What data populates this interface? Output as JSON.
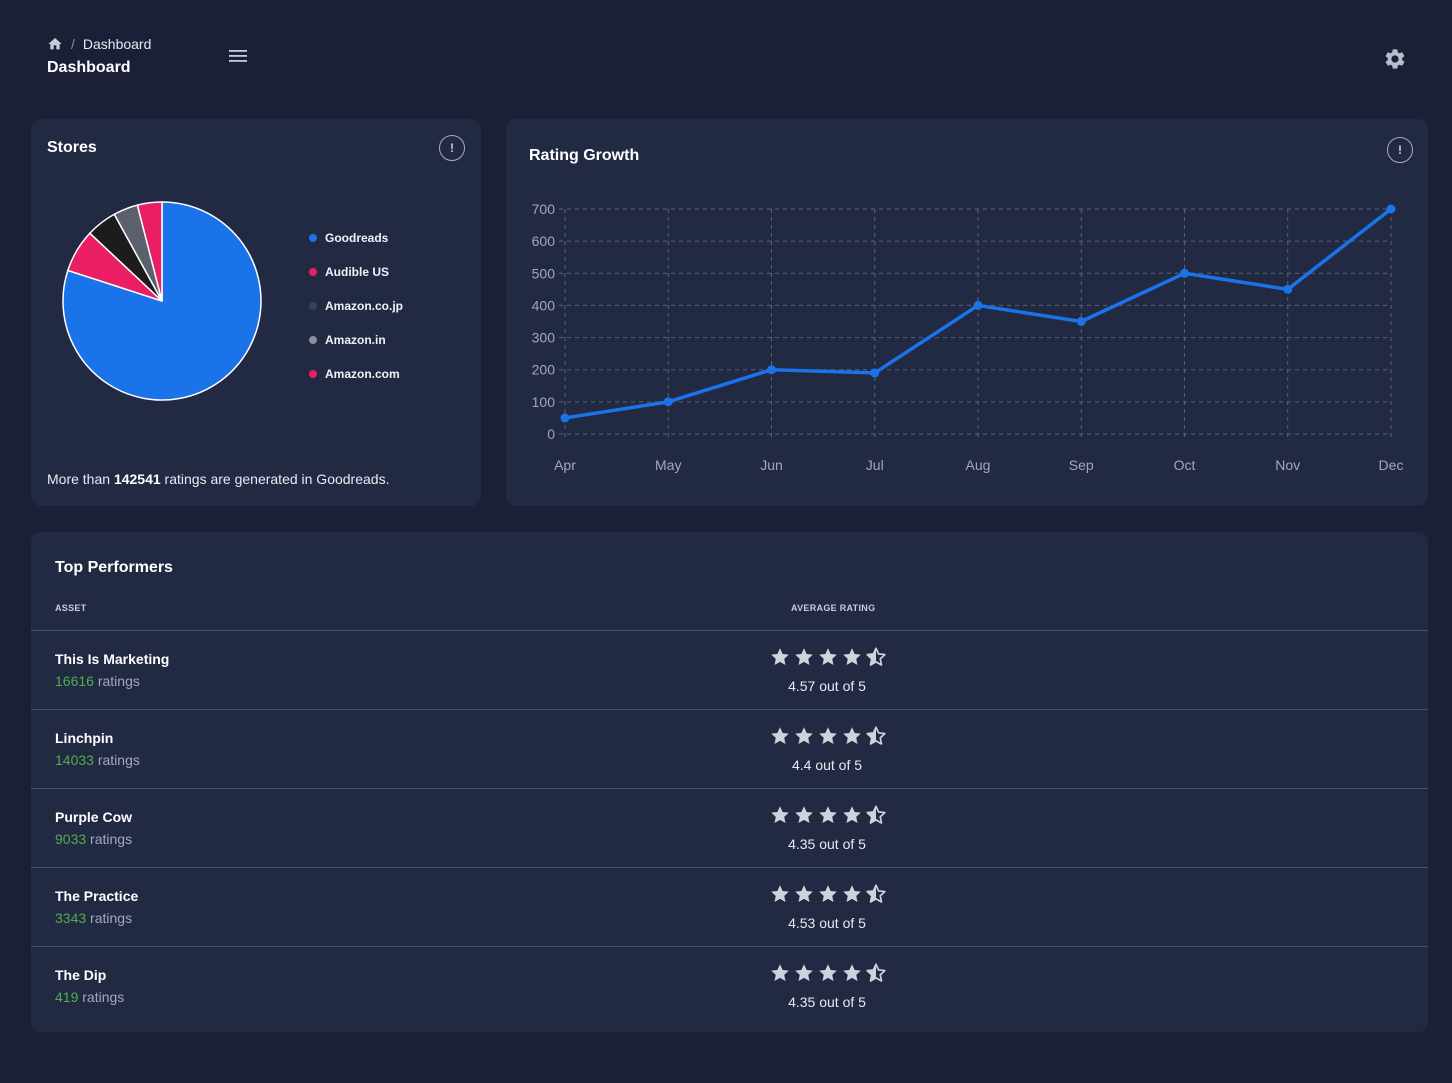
{
  "header": {
    "breadcrumb_current": "Dashboard",
    "title": "Dashboard"
  },
  "stores": {
    "title": "Stores",
    "info_symbol": "!",
    "legend": [
      {
        "label": "Goodreads",
        "color": "#1a73e8"
      },
      {
        "label": "Audible US",
        "color": "#e91e63"
      },
      {
        "label": "Amazon.co.jp",
        "color": "#374262"
      },
      {
        "label": "Amazon.in",
        "color": "#8a8f9e"
      },
      {
        "label": "Amazon.com",
        "color": "#e91e63"
      }
    ],
    "note_prefix": "More than",
    "note_value": "142541",
    "note_suffix": "ratings are generated in Goodreads."
  },
  "rating_growth": {
    "title": "Rating Growth",
    "info_symbol": "!"
  },
  "chart_data": [
    {
      "type": "pie",
      "title": "Stores",
      "categories": [
        "Goodreads",
        "Audible US",
        "Amazon.co.jp",
        "Amazon.in",
        "Amazon.com"
      ],
      "values": [
        80,
        7,
        5,
        4,
        4
      ],
      "colors": [
        "#1a73e8",
        "#e91e63",
        "#1c1c1c",
        "#5a606e",
        "#e91e63"
      ]
    },
    {
      "type": "line",
      "title": "Rating Growth",
      "categories": [
        "Apr",
        "May",
        "Jun",
        "Jul",
        "Aug",
        "Sep",
        "Oct",
        "Nov",
        "Dec"
      ],
      "values": [
        50,
        100,
        200,
        190,
        400,
        350,
        500,
        450,
        700
      ],
      "ylim": [
        0,
        700
      ],
      "yticks": [
        0,
        100,
        200,
        300,
        400,
        500,
        600,
        700
      ],
      "grid": true,
      "color": "#1a73e8"
    }
  ],
  "performers": {
    "title": "Top Performers",
    "col_asset": "ASSET",
    "col_rating": "AVERAGE RATING",
    "ratings_word": "ratings",
    "items": [
      {
        "name": "This Is Marketing",
        "count": "16616",
        "rating": 4.57,
        "rating_text": "4.57 out of 5"
      },
      {
        "name": "Linchpin",
        "count": "14033",
        "rating": 4.4,
        "rating_text": "4.4 out of 5"
      },
      {
        "name": "Purple Cow",
        "count": "9033",
        "rating": 4.35,
        "rating_text": "4.35 out of 5"
      },
      {
        "name": "The Practice",
        "count": "3343",
        "rating": 4.53,
        "rating_text": "4.53 out of 5"
      },
      {
        "name": "The Dip",
        "count": "419",
        "rating": 4.35,
        "rating_text": "4.35 out of 5"
      }
    ]
  },
  "colors": {
    "background": "#1b2036",
    "card": "#222943",
    "accent": "#1a73e8",
    "count_green": "#4caf50"
  }
}
